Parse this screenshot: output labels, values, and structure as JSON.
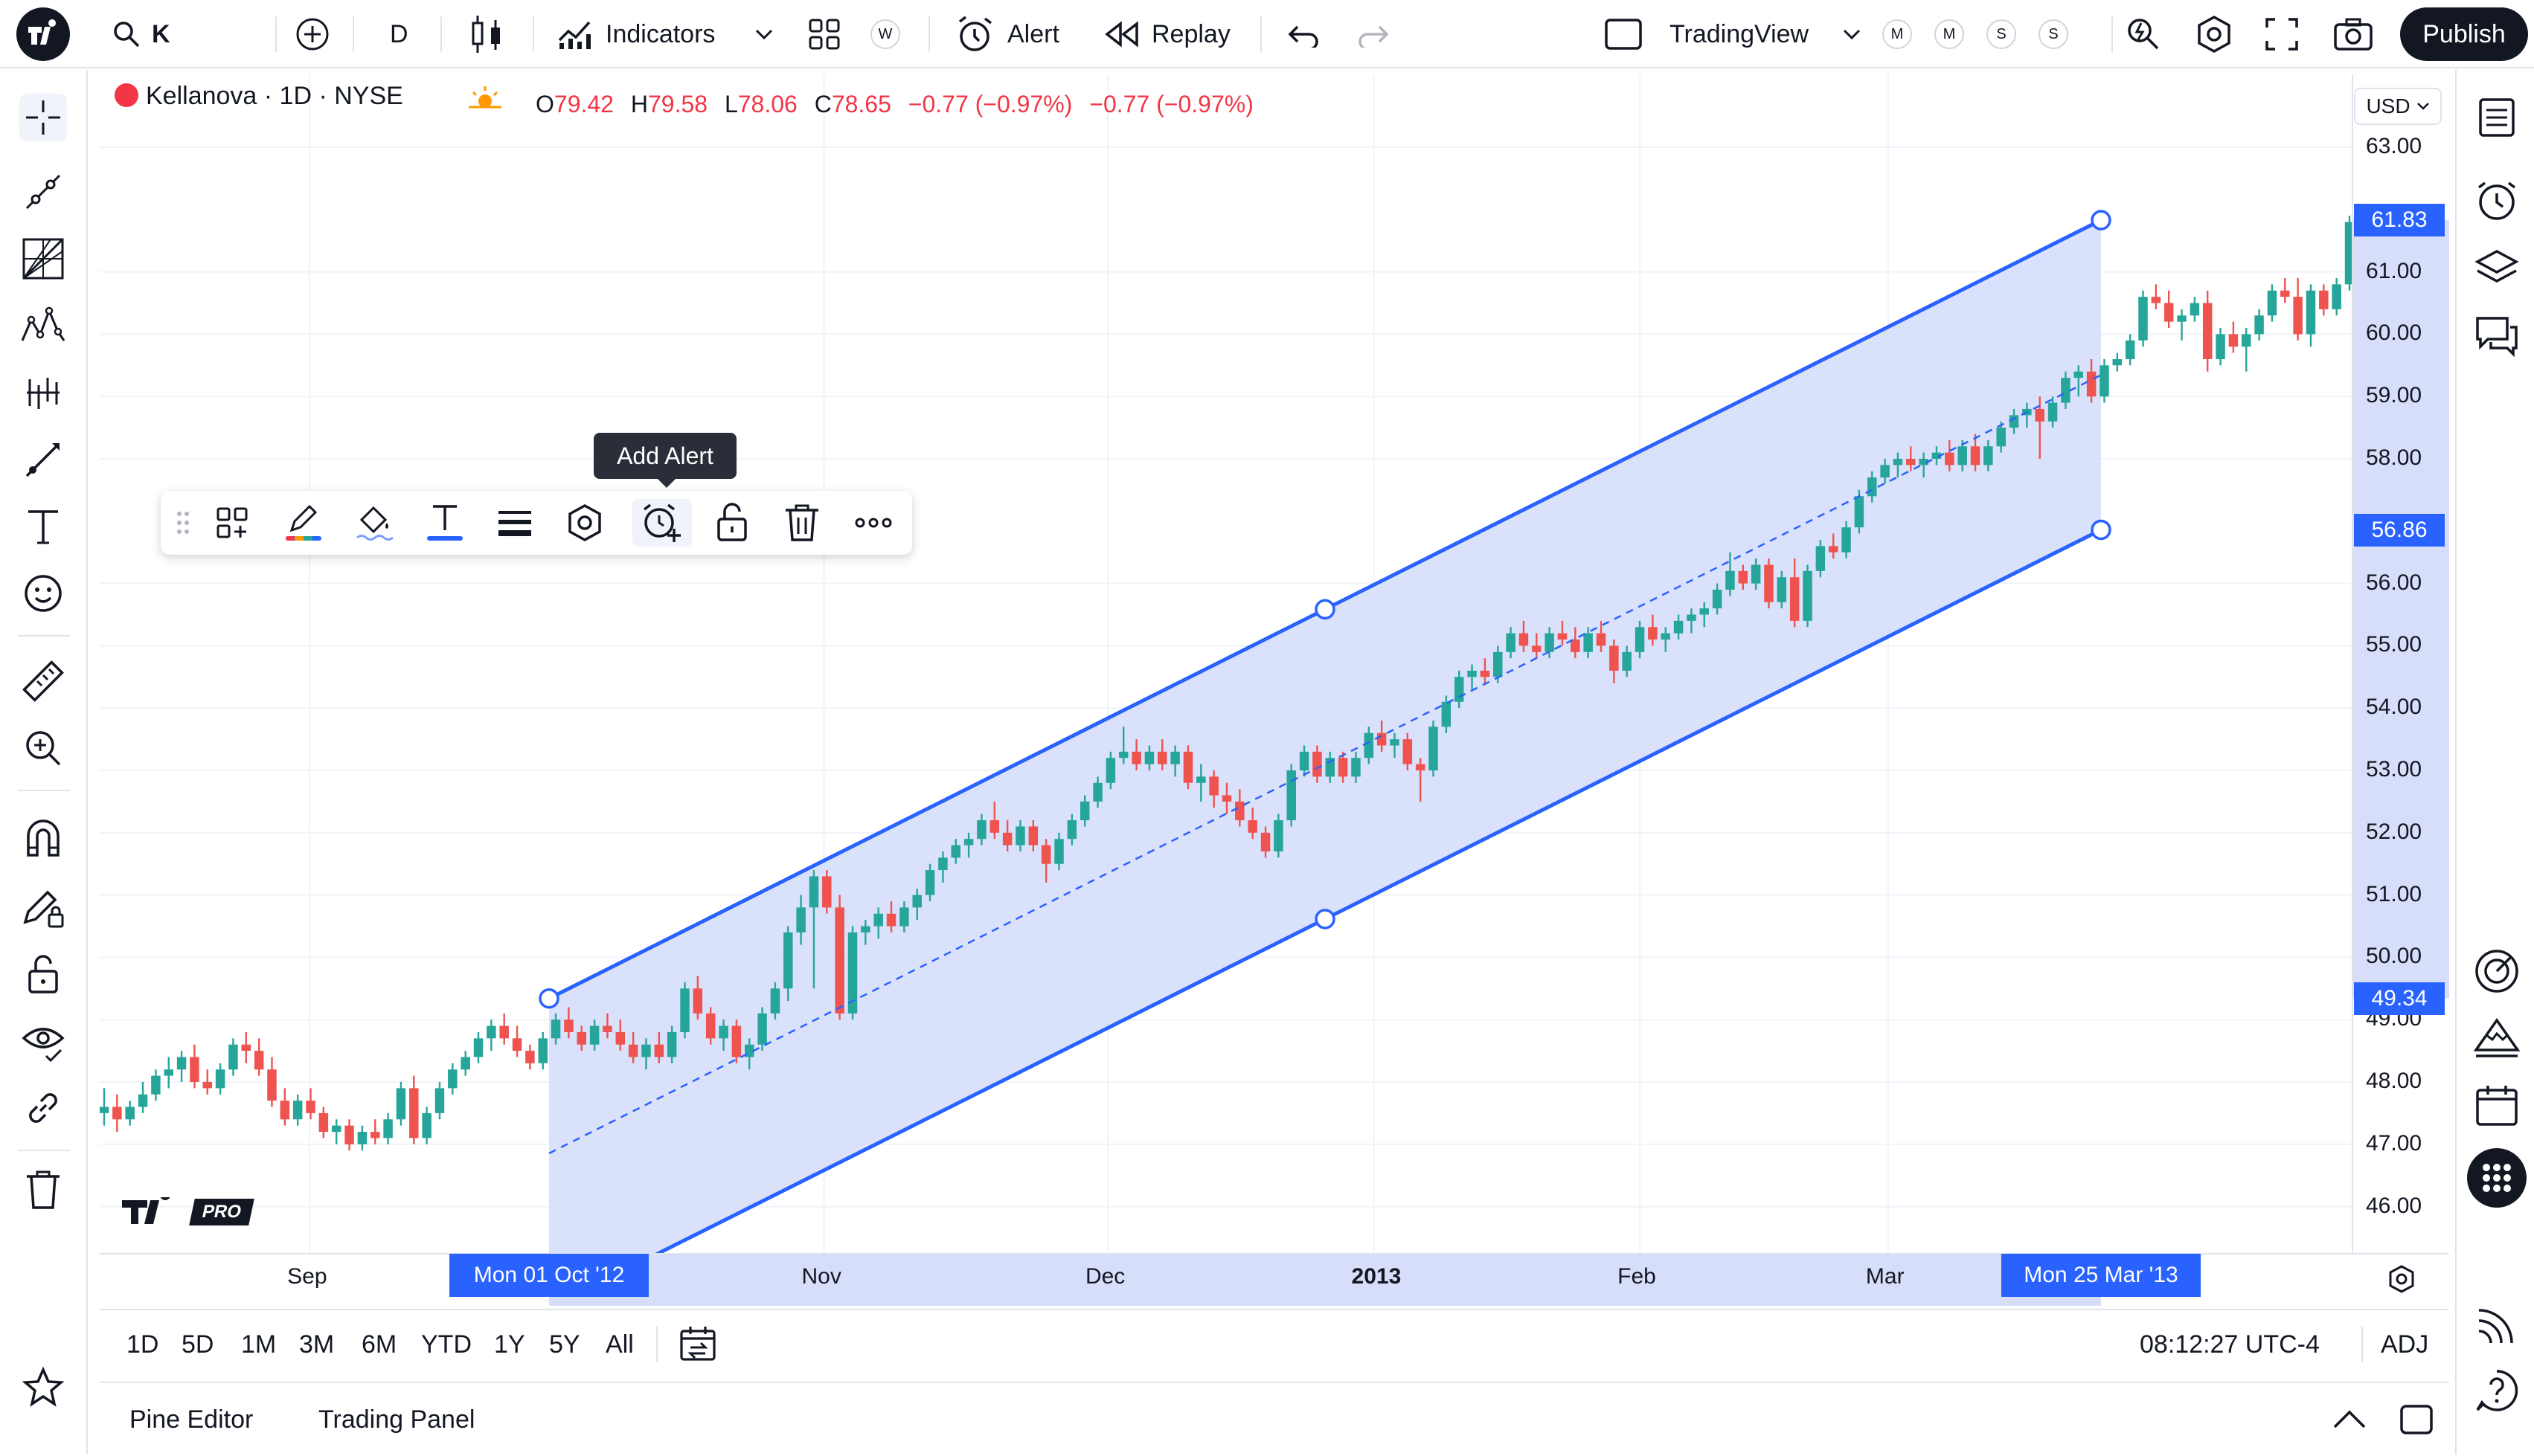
{
  "topbar": {
    "symbol_search": "K",
    "interval": "D",
    "indicators": "Indicators",
    "template_badge": "W",
    "alert": "Alert",
    "replay": "Replay",
    "layout_name": "TradingView",
    "layout_badges": [
      "M",
      "M",
      "S",
      "S"
    ],
    "publish": "Publish"
  },
  "legend": {
    "title": "Kellanova · 1D · NYSE",
    "o_label": "O",
    "o_value": "79.42",
    "h_label": "H",
    "h_value": "79.58",
    "l_label": "L",
    "l_value": "78.06",
    "c_label": "C",
    "c_value": "78.65",
    "change1": "−0.77 (−0.97%)",
    "change2": "−0.77 (−0.97%)"
  },
  "currency": "USD",
  "price_axis": [
    "63.00",
    "61.00",
    "60.00",
    "59.00",
    "58.00",
    "56.00",
    "55.00",
    "54.00",
    "53.00",
    "52.00",
    "51.00",
    "50.00",
    "49.00",
    "48.00",
    "47.00",
    "46.00"
  ],
  "price_tags": [
    "61.83",
    "56.86",
    "49.34"
  ],
  "time_axis": {
    "labels": [
      "Sep",
      "Nov",
      "Dec",
      "2013",
      "Feb",
      "Mar"
    ],
    "start_tag": "Mon 01 Oct '12",
    "end_tag": "Mon 25 Mar '13"
  },
  "watermark": "PRO",
  "tooltip": "Add Alert",
  "rangebar": {
    "ranges": [
      "1D",
      "5D",
      "1M",
      "3M",
      "6M",
      "YTD",
      "1Y",
      "5Y",
      "All"
    ],
    "clock": "08:12:27 UTC-4",
    "adj": "ADJ"
  },
  "bottom_panel": {
    "tabs": [
      "Pine Editor",
      "Trading Panel"
    ]
  },
  "colors": {
    "accent": "#2962ff",
    "up": "#26a69a",
    "down": "#ef5350",
    "channel_fill": "#d6defa",
    "legend_red": "#f23645"
  },
  "chart_data": {
    "type": "candlestick",
    "symbol": "Kellanova",
    "interval": "1D",
    "exchange": "NYSE",
    "x_range": [
      "2012-08-15",
      "2013-04-02"
    ],
    "ylim": [
      45.5,
      63.3
    ],
    "drawing": {
      "type": "parallel_channel",
      "start": {
        "date": "2012-10-01",
        "upper": 49.34
      },
      "end": {
        "date": "2013-03-25",
        "upper": 61.83,
        "lower": 56.86
      }
    },
    "series": [
      {
        "name": "price",
        "values": [
          [
            47.5,
            47.9,
            47.3,
            47.6
          ],
          [
            47.6,
            47.8,
            47.2,
            47.4
          ],
          [
            47.4,
            47.7,
            47.3,
            47.6
          ],
          [
            47.6,
            48.0,
            47.5,
            47.8
          ],
          [
            47.8,
            48.2,
            47.7,
            48.1
          ],
          [
            48.1,
            48.4,
            47.9,
            48.2
          ],
          [
            48.2,
            48.5,
            48.0,
            48.4
          ],
          [
            48.4,
            48.6,
            47.9,
            48.0
          ],
          [
            48.0,
            48.2,
            47.8,
            47.9
          ],
          [
            47.9,
            48.3,
            47.8,
            48.2
          ],
          [
            48.2,
            48.7,
            48.1,
            48.6
          ],
          [
            48.6,
            48.8,
            48.3,
            48.5
          ],
          [
            48.5,
            48.7,
            48.1,
            48.2
          ],
          [
            48.2,
            48.4,
            47.6,
            47.7
          ],
          [
            47.7,
            47.9,
            47.3,
            47.4
          ],
          [
            47.4,
            47.8,
            47.3,
            47.7
          ],
          [
            47.7,
            47.9,
            47.4,
            47.5
          ],
          [
            47.5,
            47.6,
            47.1,
            47.2
          ],
          [
            47.2,
            47.4,
            47.0,
            47.3
          ],
          [
            47.3,
            47.4,
            46.9,
            47.0
          ],
          [
            47.0,
            47.3,
            46.9,
            47.2
          ],
          [
            47.2,
            47.4,
            47.0,
            47.1
          ],
          [
            47.1,
            47.5,
            47.0,
            47.4
          ],
          [
            47.4,
            48.0,
            47.3,
            47.9
          ],
          [
            47.9,
            48.1,
            47.0,
            47.1
          ],
          [
            47.1,
            47.6,
            47.0,
            47.5
          ],
          [
            47.5,
            48.0,
            47.4,
            47.9
          ],
          [
            47.9,
            48.3,
            47.8,
            48.2
          ],
          [
            48.2,
            48.5,
            48.1,
            48.4
          ],
          [
            48.4,
            48.8,
            48.3,
            48.7
          ],
          [
            48.7,
            49.0,
            48.5,
            48.9
          ],
          [
            48.9,
            49.1,
            48.6,
            48.7
          ],
          [
            48.7,
            48.9,
            48.4,
            48.5
          ],
          [
            48.5,
            48.6,
            48.2,
            48.3
          ],
          [
            48.3,
            48.8,
            48.2,
            48.7
          ],
          [
            48.7,
            49.1,
            48.6,
            49.0
          ],
          [
            49.0,
            49.2,
            48.7,
            48.8
          ],
          [
            48.8,
            48.9,
            48.5,
            48.6
          ],
          [
            48.6,
            49.0,
            48.5,
            48.9
          ],
          [
            48.9,
            49.1,
            48.7,
            48.8
          ],
          [
            48.8,
            49.0,
            48.5,
            48.6
          ],
          [
            48.6,
            48.8,
            48.3,
            48.4
          ],
          [
            48.4,
            48.7,
            48.2,
            48.6
          ],
          [
            48.6,
            48.8,
            48.3,
            48.4
          ],
          [
            48.4,
            48.9,
            48.3,
            48.8
          ],
          [
            48.8,
            49.6,
            48.7,
            49.5
          ],
          [
            49.5,
            49.7,
            49.0,
            49.1
          ],
          [
            49.1,
            49.2,
            48.6,
            48.7
          ],
          [
            48.7,
            49.0,
            48.5,
            48.9
          ],
          [
            48.9,
            49.0,
            48.3,
            48.4
          ],
          [
            48.4,
            48.7,
            48.2,
            48.6
          ],
          [
            48.6,
            49.2,
            48.5,
            49.1
          ],
          [
            49.1,
            49.6,
            49.0,
            49.5
          ],
          [
            49.5,
            50.5,
            49.3,
            50.4
          ],
          [
            50.4,
            51.0,
            50.2,
            50.8
          ],
          [
            50.8,
            51.4,
            49.5,
            51.3
          ],
          [
            51.3,
            51.4,
            50.7,
            50.8
          ],
          [
            50.8,
            51.0,
            49.0,
            49.1
          ],
          [
            49.1,
            50.5,
            49.0,
            50.4
          ],
          [
            50.4,
            50.6,
            50.2,
            50.5
          ],
          [
            50.5,
            50.8,
            50.3,
            50.7
          ],
          [
            50.7,
            50.9,
            50.4,
            50.5
          ],
          [
            50.5,
            50.9,
            50.4,
            50.8
          ],
          [
            50.8,
            51.1,
            50.6,
            51.0
          ],
          [
            51.0,
            51.5,
            50.9,
            51.4
          ],
          [
            51.4,
            51.7,
            51.2,
            51.6
          ],
          [
            51.6,
            51.9,
            51.5,
            51.8
          ],
          [
            51.8,
            52.0,
            51.6,
            51.9
          ],
          [
            51.9,
            52.3,
            51.8,
            52.2
          ],
          [
            52.2,
            52.5,
            51.9,
            52.0
          ],
          [
            52.0,
            52.2,
            51.7,
            51.8
          ],
          [
            51.8,
            52.2,
            51.7,
            52.1
          ],
          [
            52.1,
            52.2,
            51.7,
            51.8
          ],
          [
            51.8,
            51.9,
            51.2,
            51.5
          ],
          [
            51.5,
            52.0,
            51.4,
            51.9
          ],
          [
            51.9,
            52.3,
            51.8,
            52.2
          ],
          [
            52.2,
            52.6,
            52.1,
            52.5
          ],
          [
            52.5,
            52.9,
            52.4,
            52.8
          ],
          [
            52.8,
            53.3,
            52.7,
            53.2
          ],
          [
            53.2,
            53.7,
            53.1,
            53.3
          ],
          [
            53.3,
            53.5,
            53.0,
            53.1
          ],
          [
            53.1,
            53.4,
            53.0,
            53.3
          ],
          [
            53.3,
            53.5,
            53.0,
            53.1
          ],
          [
            53.1,
            53.4,
            52.9,
            53.3
          ],
          [
            53.3,
            53.4,
            52.7,
            52.8
          ],
          [
            52.8,
            53.1,
            52.5,
            52.9
          ],
          [
            52.9,
            53.0,
            52.4,
            52.6
          ],
          [
            52.6,
            52.8,
            52.3,
            52.5
          ],
          [
            52.5,
            52.7,
            52.1,
            52.2
          ],
          [
            52.2,
            52.4,
            51.9,
            52.0
          ],
          [
            52.0,
            52.1,
            51.6,
            51.7
          ],
          [
            51.7,
            52.3,
            51.6,
            52.2
          ],
          [
            52.2,
            53.1,
            52.1,
            53.0
          ],
          [
            53.0,
            53.4,
            52.9,
            53.3
          ],
          [
            53.3,
            53.4,
            52.8,
            52.9
          ],
          [
            52.9,
            53.3,
            52.8,
            53.2
          ],
          [
            53.2,
            53.3,
            52.8,
            52.9
          ],
          [
            52.9,
            53.3,
            52.8,
            53.2
          ],
          [
            53.2,
            53.7,
            53.1,
            53.6
          ],
          [
            53.6,
            53.8,
            53.3,
            53.4
          ],
          [
            53.4,
            53.6,
            53.2,
            53.5
          ],
          [
            53.5,
            53.6,
            53.0,
            53.1
          ],
          [
            53.1,
            53.2,
            52.5,
            53.0
          ],
          [
            53.0,
            53.8,
            52.9,
            53.7
          ],
          [
            53.7,
            54.2,
            53.6,
            54.1
          ],
          [
            54.1,
            54.6,
            54.0,
            54.5
          ],
          [
            54.5,
            54.7,
            54.3,
            54.6
          ],
          [
            54.6,
            54.8,
            54.4,
            54.5
          ],
          [
            54.5,
            55.0,
            54.4,
            54.9
          ],
          [
            54.9,
            55.3,
            54.8,
            55.2
          ],
          [
            55.2,
            55.4,
            54.9,
            55.0
          ],
          [
            55.0,
            55.2,
            54.8,
            54.9
          ],
          [
            54.9,
            55.3,
            54.8,
            55.2
          ],
          [
            55.2,
            55.4,
            55.0,
            55.1
          ],
          [
            55.1,
            55.3,
            54.8,
            54.9
          ],
          [
            54.9,
            55.3,
            54.8,
            55.2
          ],
          [
            55.2,
            55.4,
            54.9,
            55.0
          ],
          [
            55.0,
            55.1,
            54.4,
            54.6
          ],
          [
            54.6,
            55.0,
            54.5,
            54.9
          ],
          [
            54.9,
            55.4,
            54.8,
            55.3
          ],
          [
            55.3,
            55.5,
            55.0,
            55.1
          ],
          [
            55.1,
            55.3,
            54.9,
            55.2
          ],
          [
            55.2,
            55.5,
            55.1,
            55.4
          ],
          [
            55.4,
            55.6,
            55.2,
            55.5
          ],
          [
            55.5,
            55.7,
            55.3,
            55.6
          ],
          [
            55.6,
            56.0,
            55.5,
            55.9
          ],
          [
            55.9,
            56.5,
            55.8,
            56.2
          ],
          [
            56.2,
            56.3,
            55.9,
            56.0
          ],
          [
            56.0,
            56.4,
            55.9,
            56.3
          ],
          [
            56.3,
            56.4,
            55.6,
            55.7
          ],
          [
            55.7,
            56.2,
            55.6,
            56.1
          ],
          [
            56.1,
            56.4,
            55.3,
            55.4
          ],
          [
            55.4,
            56.3,
            55.3,
            56.2
          ],
          [
            56.2,
            56.7,
            56.1,
            56.6
          ],
          [
            56.6,
            56.8,
            56.4,
            56.5
          ],
          [
            56.5,
            57.0,
            56.4,
            56.9
          ],
          [
            56.9,
            57.5,
            56.8,
            57.4
          ],
          [
            57.4,
            57.8,
            57.3,
            57.7
          ],
          [
            57.7,
            58.0,
            57.6,
            57.9
          ],
          [
            57.9,
            58.1,
            57.7,
            58.0
          ],
          [
            58.0,
            58.2,
            57.8,
            57.9
          ],
          [
            57.9,
            58.1,
            57.7,
            58.0
          ],
          [
            58.0,
            58.2,
            57.9,
            58.1
          ],
          [
            58.1,
            58.3,
            57.8,
            57.9
          ],
          [
            57.9,
            58.3,
            57.8,
            58.2
          ],
          [
            58.2,
            58.4,
            57.8,
            57.9
          ],
          [
            57.9,
            58.3,
            57.8,
            58.2
          ],
          [
            58.2,
            58.6,
            58.1,
            58.5
          ],
          [
            58.5,
            58.8,
            58.4,
            58.7
          ],
          [
            58.7,
            58.9,
            58.5,
            58.8
          ],
          [
            58.8,
            59.0,
            58.0,
            58.6
          ],
          [
            58.6,
            59.0,
            58.5,
            58.9
          ],
          [
            58.9,
            59.4,
            58.8,
            59.3
          ],
          [
            59.3,
            59.5,
            59.0,
            59.4
          ],
          [
            59.4,
            59.6,
            58.9,
            59.0
          ],
          [
            59.0,
            59.6,
            58.9,
            59.5
          ],
          [
            59.5,
            59.7,
            59.4,
            59.6
          ],
          [
            59.6,
            60.0,
            59.5,
            59.9
          ],
          [
            59.9,
            60.7,
            59.8,
            60.6
          ],
          [
            60.6,
            60.8,
            60.4,
            60.5
          ],
          [
            60.5,
            60.7,
            60.1,
            60.2
          ],
          [
            60.2,
            60.4,
            59.9,
            60.3
          ],
          [
            60.3,
            60.6,
            60.2,
            60.5
          ],
          [
            60.5,
            60.7,
            59.4,
            59.6
          ],
          [
            59.6,
            60.1,
            59.5,
            60.0
          ],
          [
            60.0,
            60.2,
            59.7,
            59.8
          ],
          [
            59.8,
            60.1,
            59.4,
            60.0
          ],
          [
            60.0,
            60.4,
            59.9,
            60.3
          ],
          [
            60.3,
            60.8,
            60.2,
            60.7
          ],
          [
            60.7,
            60.9,
            60.5,
            60.6
          ],
          [
            60.6,
            60.9,
            59.9,
            60.0
          ],
          [
            60.0,
            60.8,
            59.8,
            60.7
          ],
          [
            60.7,
            60.8,
            60.3,
            60.4
          ],
          [
            60.4,
            60.9,
            60.3,
            60.8
          ],
          [
            60.8,
            61.9,
            60.7,
            61.8
          ]
        ]
      }
    ]
  }
}
